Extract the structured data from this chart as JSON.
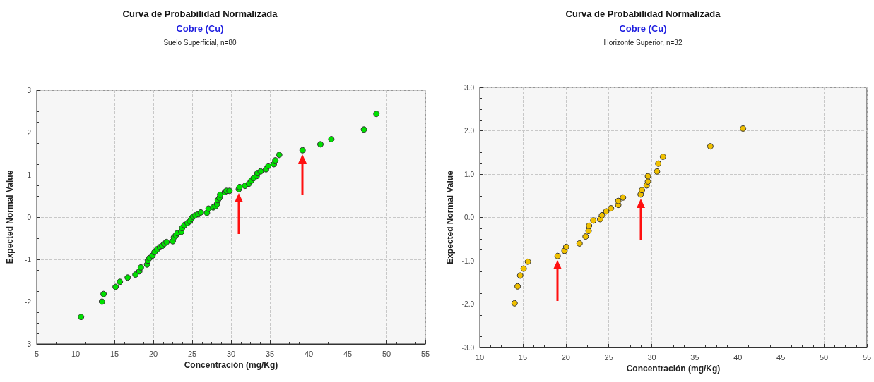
{
  "chart_data": [
    {
      "type": "scatter",
      "title": "Curva de Probabilidad Normalizada",
      "subtitle": "Cobre (Cu)",
      "annotations": [
        "Suelo Superficial, n=80"
      ],
      "xlabel": "Concentración (mg/Kg)",
      "ylabel": "Expected Normal Value",
      "x": [
        10.7,
        13.4,
        13.6,
        15.15,
        15.7,
        16.7,
        17.7,
        18.2,
        18.4,
        19.2,
        19.3,
        19.5,
        19.9,
        20.15,
        20.5,
        20.85,
        21.15,
        21.4,
        21.7,
        22.5,
        22.65,
        22.9,
        23.1,
        23.6,
        23.7,
        24.0,
        24.4,
        24.7,
        24.9,
        25.1,
        25.4,
        25.8,
        26.1,
        26.9,
        27.1,
        27.7,
        28.0,
        28.2,
        28.3,
        28.5,
        28.6,
        29.2,
        29.4,
        29.8,
        31.0,
        31.1,
        31.8,
        32.3,
        32.6,
        32.9,
        33.3,
        33.4,
        33.8,
        34.5,
        34.8,
        35.5,
        35.7,
        36.2,
        39.2,
        41.5,
        42.9,
        47.1,
        48.7
      ],
      "series": [
        {
          "color": "#00e000",
          "values": [
            -2.36,
            -2.0,
            -1.82,
            -1.65,
            -1.53,
            -1.43,
            -1.36,
            -1.28,
            -1.19,
            -1.12,
            -1.03,
            -0.97,
            -0.91,
            -0.83,
            -0.76,
            -0.71,
            -0.68,
            -0.63,
            -0.59,
            -0.57,
            -0.48,
            -0.43,
            -0.38,
            -0.35,
            -0.26,
            -0.19,
            -0.14,
            -0.1,
            -0.04,
            0.01,
            0.04,
            0.07,
            0.11,
            0.1,
            0.2,
            0.23,
            0.26,
            0.31,
            0.4,
            0.45,
            0.53,
            0.59,
            0.62,
            0.62,
            0.66,
            0.71,
            0.74,
            0.79,
            0.86,
            0.92,
            0.97,
            1.04,
            1.08,
            1.13,
            1.21,
            1.25,
            1.34,
            1.47,
            1.58,
            1.72,
            1.84,
            2.07,
            2.44
          ]
        }
      ],
      "xlim": [
        5,
        55
      ],
      "xticks": [
        5,
        10,
        15,
        20,
        25,
        30,
        35,
        40,
        45,
        50,
        55
      ],
      "ylim": [
        -3,
        3
      ],
      "yticks": [
        -3,
        -2,
        -1,
        0,
        1,
        2,
        3
      ],
      "grid": true,
      "marker": "circle"
    },
    {
      "type": "scatter",
      "title": "Curva de Probabilidad Normalizada",
      "subtitle": "Cobre (Cu)",
      "annotations": [
        "Horizonte Superior, n=32"
      ],
      "xlabel": "Concentración (mg/Kg)",
      "ylabel": "Expected Normal Value",
      "x": [
        14.05,
        14.4,
        14.7,
        15.1,
        15.6,
        19.05,
        19.85,
        20.05,
        21.6,
        22.3,
        22.65,
        22.7,
        23.2,
        24.0,
        24.2,
        24.7,
        25.25,
        26.1,
        26.1,
        26.65,
        28.7,
        28.85,
        29.4,
        29.55,
        29.55,
        30.6,
        30.75,
        31.3,
        36.8,
        40.6
      ],
      "series": [
        {
          "color": "#f0c000",
          "values": [
            -1.98,
            -1.59,
            -1.34,
            -1.18,
            -1.02,
            -0.89,
            -0.77,
            -0.68,
            -0.6,
            -0.44,
            -0.31,
            -0.19,
            -0.07,
            -0.04,
            0.05,
            0.14,
            0.21,
            0.29,
            0.38,
            0.46,
            0.53,
            0.63,
            0.74,
            0.83,
            0.95,
            1.06,
            1.24,
            1.4,
            1.64,
            2.05
          ]
        }
      ],
      "xlim": [
        10,
        55
      ],
      "xticks": [
        10,
        15,
        20,
        25,
        30,
        35,
        40,
        45,
        50,
        55
      ],
      "ylim": [
        -3,
        3
      ],
      "yticks": [
        {
          "value": -3,
          "label": "-3.0"
        },
        {
          "value": -2,
          "label": "-2.0"
        },
        {
          "value": -1,
          "label": "-1.0"
        },
        {
          "value": 0,
          "label": "0.0"
        },
        {
          "value": 1,
          "label": "1.0"
        },
        {
          "value": 2,
          "label": "2.0"
        },
        {
          "value": 3,
          "label": "3.0"
        }
      ],
      "grid": true,
      "marker": "circle"
    }
  ]
}
